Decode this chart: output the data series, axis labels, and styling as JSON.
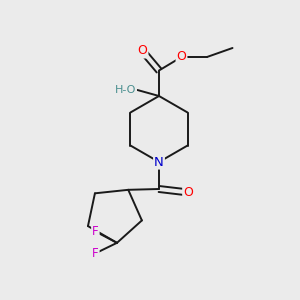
{
  "background_color": "#ebebeb",
  "fig_size": [
    3.0,
    3.0
  ],
  "dpi": 100,
  "atom_colors": {
    "O": "#ff0000",
    "N": "#0000cc",
    "F": "#cc00cc",
    "C": "#1a1a1a",
    "H": "#4a8f8f"
  },
  "bond_color": "#1a1a1a",
  "bond_width": 1.4,
  "font_size_atoms": 8.5
}
